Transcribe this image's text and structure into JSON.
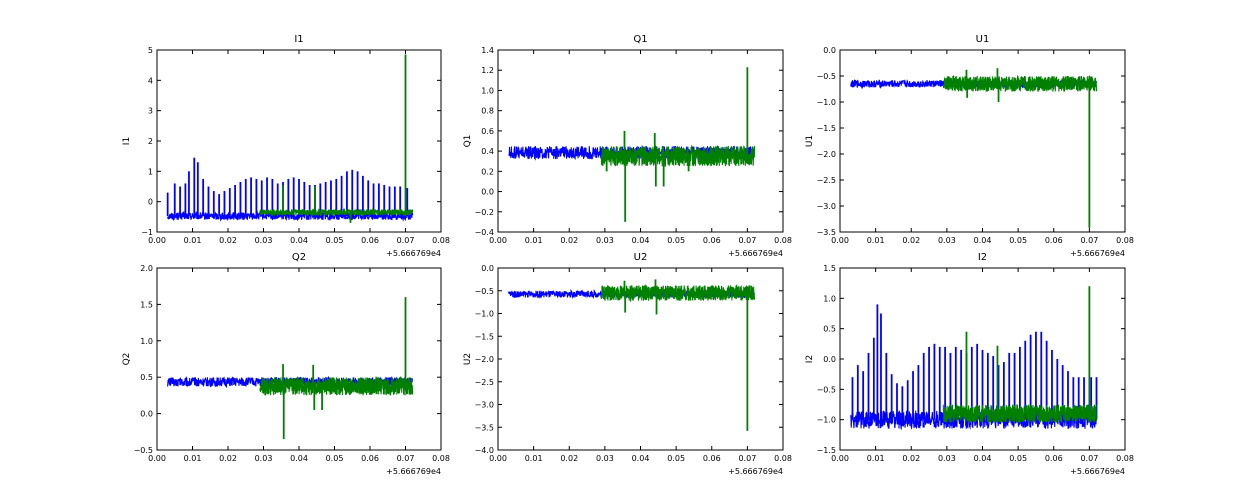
{
  "figure": {
    "background": "#ffffff"
  },
  "chart_data": [
    {
      "type": "line",
      "title": "I1",
      "ylabel": "I1",
      "offset": "+5.666769e4",
      "xlim": [
        0.0,
        0.08
      ],
      "ylim": [
        -1,
        5
      ],
      "xticks": [
        "0.00",
        "0.01",
        "0.02",
        "0.03",
        "0.04",
        "0.05",
        "0.06",
        "0.07",
        "0.08"
      ],
      "yticks": [
        "−1",
        "0",
        "1",
        "2",
        "3",
        "4",
        "5"
      ],
      "series": [
        {
          "color": "#0000ff",
          "band": [
            -0.6,
            -0.35
          ],
          "x_range": [
            0.003,
            0.072
          ],
          "spikes": [
            [
              0.003,
              0.3
            ],
            [
              0.005,
              0.6
            ],
            [
              0.0065,
              0.5
            ],
            [
              0.008,
              0.6
            ],
            [
              0.009,
              1.0
            ],
            [
              0.0105,
              1.45
            ],
            [
              0.0115,
              1.3
            ],
            [
              0.013,
              0.75
            ],
            [
              0.0145,
              0.5
            ],
            [
              0.016,
              0.35
            ],
            [
              0.0175,
              0.25
            ],
            [
              0.019,
              0.35
            ],
            [
              0.0205,
              0.45
            ],
            [
              0.022,
              0.55
            ],
            [
              0.0235,
              0.65
            ],
            [
              0.025,
              0.75
            ],
            [
              0.0265,
              0.8
            ],
            [
              0.028,
              0.75
            ],
            [
              0.0295,
              0.7
            ],
            [
              0.031,
              0.8
            ],
            [
              0.0325,
              0.75
            ],
            [
              0.034,
              0.6
            ],
            [
              0.0355,
              0.65
            ],
            [
              0.037,
              0.75
            ],
            [
              0.0385,
              0.8
            ],
            [
              0.04,
              0.75
            ],
            [
              0.0415,
              0.65
            ],
            [
              0.043,
              0.55
            ],
            [
              0.0445,
              0.55
            ],
            [
              0.046,
              0.6
            ],
            [
              0.0475,
              0.65
            ],
            [
              0.049,
              0.7
            ],
            [
              0.0505,
              0.75
            ],
            [
              0.052,
              0.85
            ],
            [
              0.0535,
              1.0
            ],
            [
              0.055,
              1.05
            ],
            [
              0.0565,
              1.0
            ],
            [
              0.058,
              0.85
            ],
            [
              0.0595,
              0.7
            ],
            [
              0.061,
              0.6
            ],
            [
              0.0625,
              0.6
            ],
            [
              0.064,
              0.55
            ],
            [
              0.0655,
              0.5
            ],
            [
              0.067,
              0.5
            ],
            [
              0.0685,
              0.5
            ],
            [
              0.0705,
              0.45
            ]
          ]
        },
        {
          "color": "#008000",
          "band": [
            -0.45,
            -0.25
          ],
          "x_range": [
            0.029,
            0.072
          ],
          "spikes": [
            [
              0.0355,
              0.55
            ],
            [
              0.0445,
              0.5
            ],
            [
              0.0545,
              -0.7
            ],
            [
              0.07,
              4.85
            ]
          ]
        }
      ]
    },
    {
      "type": "line",
      "title": "Q1",
      "ylabel": "Q1",
      "offset": "+5.666769e4",
      "xlim": [
        0.0,
        0.08
      ],
      "ylim": [
        -0.4,
        1.4
      ],
      "xticks": [
        "0.00",
        "0.01",
        "0.02",
        "0.03",
        "0.04",
        "0.05",
        "0.06",
        "0.07",
        "0.08"
      ],
      "yticks": [
        "−0.4",
        "−0.2",
        "0.0",
        "0.2",
        "0.4",
        "0.6",
        "0.8",
        "1.0",
        "1.2",
        "1.4"
      ],
      "series": [
        {
          "color": "#0000ff",
          "band": [
            0.32,
            0.45
          ],
          "x_range": [
            0.003,
            0.072
          ],
          "spikes": []
        },
        {
          "color": "#008000",
          "band": [
            0.25,
            0.45
          ],
          "x_range": [
            0.029,
            0.072
          ],
          "spikes": [
            [
              0.0305,
              0.2
            ],
            [
              0.0355,
              0.6
            ],
            [
              0.0357,
              -0.3
            ],
            [
              0.044,
              0.58
            ],
            [
              0.0443,
              0.05
            ],
            [
              0.0465,
              0.05
            ],
            [
              0.0535,
              0.2
            ],
            [
              0.07,
              1.23
            ]
          ]
        }
      ]
    },
    {
      "type": "line",
      "title": "U1",
      "ylabel": "U1",
      "offset": "+5.666769e4",
      "xlim": [
        0.0,
        0.08
      ],
      "ylim": [
        -3.5,
        0.0
      ],
      "xticks": [
        "0.00",
        "0.01",
        "0.02",
        "0.03",
        "0.04",
        "0.05",
        "0.06",
        "0.07",
        "0.08"
      ],
      "yticks": [
        "−3.5",
        "−3.0",
        "−2.5",
        "−2.0",
        "−1.5",
        "−1.0",
        "−0.5",
        "0.0"
      ],
      "series": [
        {
          "color": "#0000ff",
          "band": [
            -0.72,
            -0.58
          ],
          "x_range": [
            0.003,
            0.072
          ],
          "spikes": []
        },
        {
          "color": "#008000",
          "band": [
            -0.8,
            -0.5
          ],
          "x_range": [
            0.029,
            0.072
          ],
          "spikes": [
            [
              0.0355,
              -0.38
            ],
            [
              0.0357,
              -0.92
            ],
            [
              0.0442,
              -0.35
            ],
            [
              0.0445,
              -1.0
            ],
            [
              0.07,
              -3.42
            ]
          ]
        }
      ]
    },
    {
      "type": "line",
      "title": "Q2",
      "ylabel": "Q2",
      "offset": "+5.666769e4",
      "xlim": [
        0.0,
        0.08
      ],
      "ylim": [
        -0.5,
        2.0
      ],
      "xticks": [
        "0.00",
        "0.01",
        "0.02",
        "0.03",
        "0.04",
        "0.05",
        "0.06",
        "0.07",
        "0.08"
      ],
      "yticks": [
        "−0.5",
        "0.0",
        "0.5",
        "1.0",
        "1.5",
        "2.0"
      ],
      "series": [
        {
          "color": "#0000ff",
          "band": [
            0.37,
            0.5
          ],
          "x_range": [
            0.003,
            0.072
          ],
          "spikes": []
        },
        {
          "color": "#008000",
          "band": [
            0.25,
            0.5
          ],
          "x_range": [
            0.029,
            0.072
          ],
          "spikes": [
            [
              0.0305,
              0.25
            ],
            [
              0.0355,
              0.68
            ],
            [
              0.0357,
              -0.35
            ],
            [
              0.044,
              0.67
            ],
            [
              0.0443,
              0.05
            ],
            [
              0.0465,
              0.05
            ],
            [
              0.07,
              1.6
            ]
          ]
        }
      ]
    },
    {
      "type": "line",
      "title": "U2",
      "ylabel": "U2",
      "offset": "+5.666769e4",
      "xlim": [
        0.0,
        0.08
      ],
      "ylim": [
        -4.0,
        0.0
      ],
      "xticks": [
        "0.00",
        "0.01",
        "0.02",
        "0.03",
        "0.04",
        "0.05",
        "0.06",
        "0.07",
        "0.08"
      ],
      "yticks": [
        "−4.0",
        "−3.5",
        "−3.0",
        "−2.5",
        "−2.0",
        "−1.5",
        "−1.0",
        "−0.5",
        "0.0"
      ],
      "series": [
        {
          "color": "#0000ff",
          "band": [
            -0.65,
            -0.5
          ],
          "x_range": [
            0.003,
            0.072
          ],
          "spikes": []
        },
        {
          "color": "#008000",
          "band": [
            -0.72,
            -0.38
          ],
          "x_range": [
            0.029,
            0.072
          ],
          "spikes": [
            [
              0.0355,
              -0.28
            ],
            [
              0.0357,
              -0.98
            ],
            [
              0.0442,
              -0.25
            ],
            [
              0.0445,
              -1.02
            ],
            [
              0.07,
              -3.58
            ]
          ]
        }
      ]
    },
    {
      "type": "line",
      "title": "I2",
      "ylabel": "I2",
      "offset": "+5.666769e4",
      "xlim": [
        0.0,
        0.08
      ],
      "ylim": [
        -1.5,
        1.5
      ],
      "xticks": [
        "0.00",
        "0.01",
        "0.02",
        "0.03",
        "0.04",
        "0.05",
        "0.06",
        "0.07",
        "0.08"
      ],
      "yticks": [
        "−1.5",
        "−1.0",
        "−0.5",
        "0.0",
        "0.5",
        "1.0",
        "1.5"
      ],
      "series": [
        {
          "color": "#0000ff",
          "band": [
            -1.15,
            -0.85
          ],
          "x_range": [
            0.003,
            0.072
          ],
          "spikes": [
            [
              0.0035,
              -0.3
            ],
            [
              0.005,
              -0.1
            ],
            [
              0.0065,
              -0.2
            ],
            [
              0.008,
              0.1
            ],
            [
              0.0095,
              0.35
            ],
            [
              0.0105,
              0.9
            ],
            [
              0.0115,
              0.75
            ],
            [
              0.013,
              0.1
            ],
            [
              0.0145,
              -0.25
            ],
            [
              0.016,
              -0.4
            ],
            [
              0.0175,
              -0.45
            ],
            [
              0.019,
              -0.35
            ],
            [
              0.0205,
              -0.2
            ],
            [
              0.022,
              -0.1
            ],
            [
              0.0235,
              0.1
            ],
            [
              0.025,
              0.2
            ],
            [
              0.0265,
              0.25
            ],
            [
              0.028,
              0.2
            ],
            [
              0.0295,
              0.2
            ],
            [
              0.031,
              0.1
            ],
            [
              0.0325,
              0.2
            ],
            [
              0.034,
              0.15
            ],
            [
              0.0355,
              0.1
            ],
            [
              0.037,
              0.2
            ],
            [
              0.0385,
              0.25
            ],
            [
              0.04,
              0.15
            ],
            [
              0.0415,
              0.1
            ],
            [
              0.043,
              0.05
            ],
            [
              0.0445,
              -0.1
            ],
            [
              0.046,
              -0.05
            ],
            [
              0.0475,
              0.1
            ],
            [
              0.049,
              0.1
            ],
            [
              0.0505,
              0.2
            ],
            [
              0.052,
              0.3
            ],
            [
              0.0535,
              0.4
            ],
            [
              0.055,
              0.45
            ],
            [
              0.0565,
              0.45
            ],
            [
              0.058,
              0.3
            ],
            [
              0.0595,
              0.15
            ],
            [
              0.061,
              0.0
            ],
            [
              0.0625,
              -0.1
            ],
            [
              0.064,
              -0.2
            ],
            [
              0.0655,
              -0.3
            ],
            [
              0.067,
              -0.3
            ],
            [
              0.0685,
              -0.3
            ],
            [
              0.0705,
              -0.3
            ],
            [
              0.072,
              -0.3
            ]
          ]
        },
        {
          "color": "#008000",
          "band": [
            -1.05,
            -0.75
          ],
          "x_range": [
            0.029,
            0.072
          ],
          "spikes": [
            [
              0.0355,
              0.45
            ],
            [
              0.0442,
              0.22
            ],
            [
              0.07,
              1.2
            ]
          ]
        }
      ]
    }
  ]
}
